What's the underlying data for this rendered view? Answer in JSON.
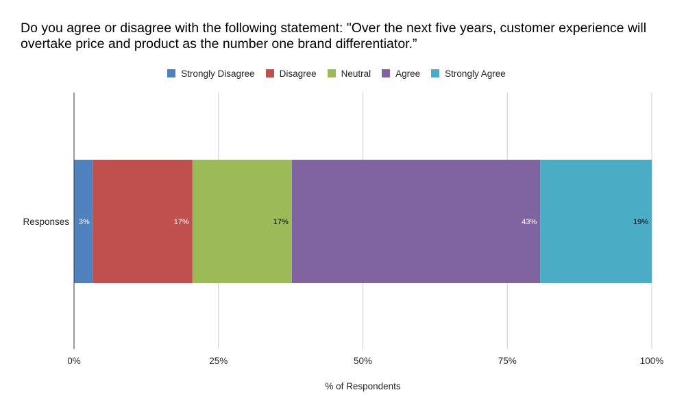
{
  "chart_data": {
    "type": "bar",
    "orientation": "horizontal",
    "stacked": true,
    "title": "Do you agree or disagree with the following statement: \"Over the next five years, customer experience will overtake price and product as the number one brand differentiator.”",
    "categories": [
      "Responses"
    ],
    "series": [
      {
        "name": "Strongly Disagree",
        "values": [
          3.3
        ],
        "label": "3%",
        "color": "#4f81bd",
        "label_color": "#ffffff"
      },
      {
        "name": "Disagree",
        "values": [
          17.2
        ],
        "label": "17%",
        "color": "#c0504d",
        "label_color": "#ffffff"
      },
      {
        "name": "Neutral",
        "values": [
          17.2
        ],
        "label": "17%",
        "color": "#9bbb59",
        "label_color": "#000000"
      },
      {
        "name": "Agree",
        "values": [
          43.0
        ],
        "label": "43%",
        "color": "#8064a2",
        "label_color": "#ffffff"
      },
      {
        "name": "Strongly Agree",
        "values": [
          19.3
        ],
        "label": "19%",
        "color": "#4bacc6",
        "label_color": "#000000"
      }
    ],
    "xlabel": "% of Respondents",
    "ylabel": "",
    "xlim": [
      0,
      100
    ],
    "xticks": [
      0,
      25,
      50,
      75,
      100
    ],
    "xtick_labels": [
      "0%",
      "25%",
      "50%",
      "75%",
      "100%"
    ],
    "grid": true,
    "legend_position": "top"
  }
}
